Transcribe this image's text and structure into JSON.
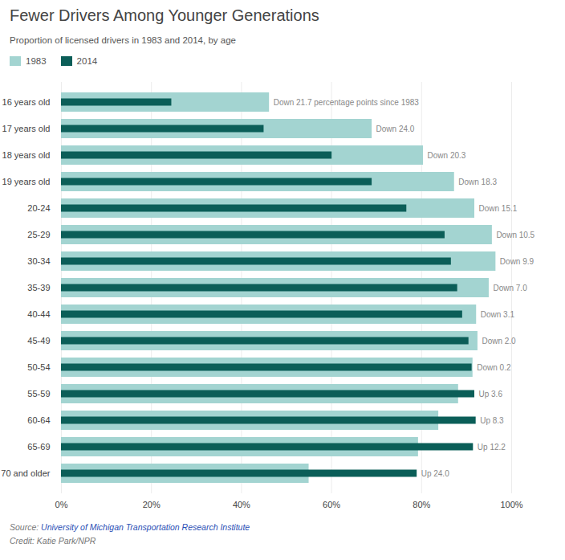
{
  "chart_data": {
    "type": "bar",
    "orientation": "horizontal",
    "title": "Fewer Drivers Among Younger Generations",
    "subtitle": "Proportion of licensed drivers in 1983 and 2014, by age",
    "source": "Source: University of Michigan Transportation Research Institute",
    "credit": "Credit: Katie Park/NPR",
    "categories": [
      "16 years old",
      "17 years old",
      "18 years old",
      "19 years old",
      "20-24",
      "25-29",
      "30-34",
      "35-39",
      "40-44",
      "45-49",
      "50-54",
      "55-59",
      "60-64",
      "65-69",
      "70 and older"
    ],
    "series": [
      {
        "name": "1983",
        "color": "#a3d4d1",
        "values": [
          46.2,
          69.0,
          80.4,
          87.3,
          91.8,
          95.7,
          96.5,
          95.0,
          92.2,
          92.5,
          91.4,
          88.2,
          83.8,
          79.3,
          55.0
        ]
      },
      {
        "name": "2014",
        "color": "#0b5e58",
        "values": [
          24.5,
          45.0,
          60.1,
          69.0,
          76.7,
          85.2,
          86.6,
          88.0,
          89.1,
          90.5,
          91.2,
          91.8,
          92.1,
          91.5,
          79.0
        ]
      }
    ],
    "annotations": [
      "Down 21.7 percentage points since 1983",
      "Down 24.0",
      "Down 20.3",
      "Down 18.3",
      "Down 15.1",
      "Down 10.5",
      "Down 9.9",
      "Down 7.0",
      "Down 3.1",
      "Down 2.0",
      "Down 0.2",
      "Up 3.6",
      "Up 8.3",
      "Up 12.2",
      "Up 24.0"
    ],
    "xlim": [
      0,
      100
    ],
    "xticks": [
      {
        "value": 0,
        "label": "0%"
      },
      {
        "value": 20,
        "label": "20%"
      },
      {
        "value": 40,
        "label": "40%"
      },
      {
        "value": 60,
        "label": "60%"
      },
      {
        "value": 80,
        "label": "80%"
      },
      {
        "value": 100,
        "label": "100%"
      }
    ],
    "grid": true,
    "legend": "top-left"
  }
}
